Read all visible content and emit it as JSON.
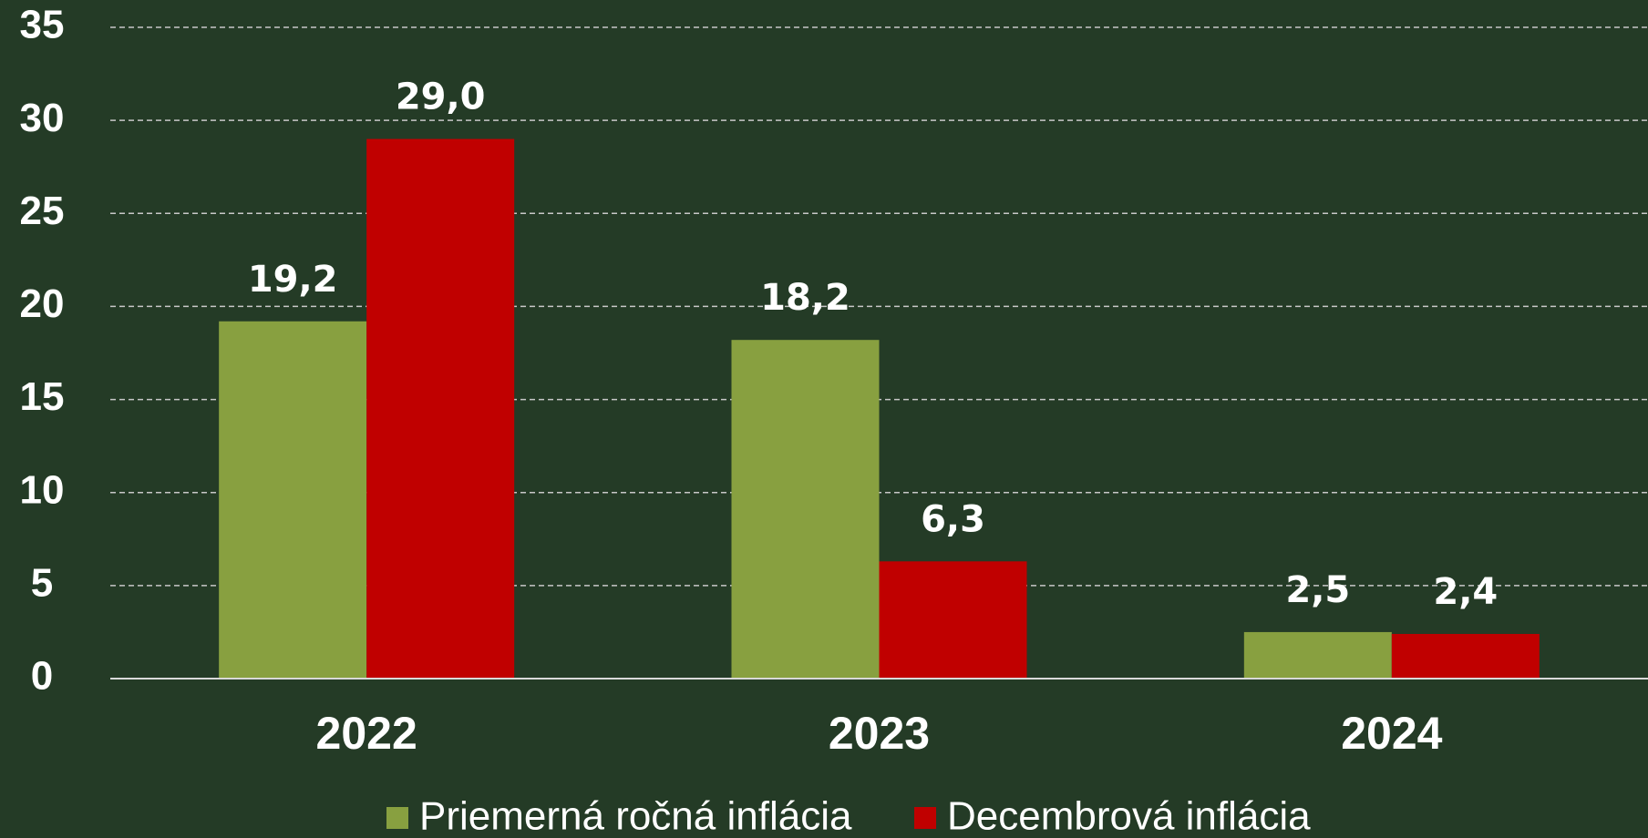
{
  "chart_data": {
    "type": "bar",
    "categories": [
      "2022",
      "2023",
      "2024"
    ],
    "series": [
      {
        "name": "Priemerná ročná inflácia",
        "color": "#88a040",
        "values": [
          19.2,
          18.2,
          2.5
        ],
        "value_labels": [
          "19,2",
          "18,2",
          "2,5"
        ]
      },
      {
        "name": "Decembrová inflácia",
        "color": "#c00000",
        "values": [
          29.0,
          6.3,
          2.4
        ],
        "value_labels": [
          "29,0",
          "6,3",
          "2,4"
        ]
      }
    ],
    "ylim": [
      0,
      35
    ],
    "yticks": [
      0,
      5,
      10,
      15,
      20,
      25,
      30,
      35
    ],
    "grid": true,
    "legend": "bottom"
  }
}
